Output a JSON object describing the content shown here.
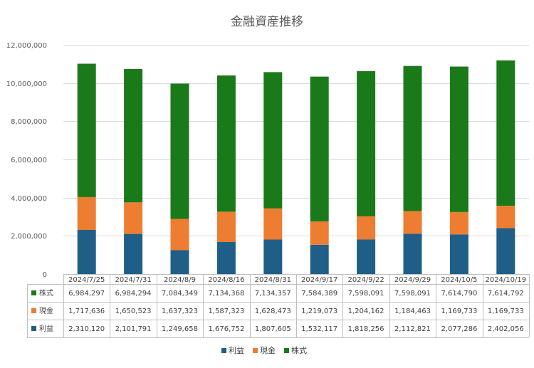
{
  "chart_data": {
    "type": "bar",
    "stacked": true,
    "title": "金融資産推移",
    "categories": [
      "2024/7/25",
      "2024/7/31",
      "2024/8/9",
      "2024/8/16",
      "2024/8/31",
      "2024/9/17",
      "2024/9/22",
      "2024/9/29",
      "2024/10/5",
      "2024/10/19"
    ],
    "series": [
      {
        "name": "利益",
        "color": "#1f5f87",
        "values": [
          2310120,
          2101791,
          1249658,
          1676752,
          1807605,
          1532117,
          1818256,
          2112821,
          2077286,
          2402056
        ]
      },
      {
        "name": "現金",
        "color": "#ed7d31",
        "values": [
          1717636,
          1650523,
          1637323,
          1587323,
          1628473,
          1219073,
          1204162,
          1184463,
          1169733,
          1169733
        ]
      },
      {
        "name": "株式",
        "color": "#1a7a1a",
        "values": [
          6984297,
          6984294,
          7084349,
          7134368,
          7134357,
          7584389,
          7598091,
          7598091,
          7614790,
          7614792
        ]
      }
    ],
    "ylim": [
      0,
      12000000
    ],
    "yticks": [
      0,
      2000000,
      4000000,
      6000000,
      8000000,
      10000000,
      12000000
    ],
    "ytick_labels": [
      "0",
      "2,000,000",
      "4,000,000",
      "6,000,000",
      "8,000,000",
      "10,000,000",
      "12,000,000"
    ],
    "table_rows": [
      {
        "name": "株式",
        "color": "#1a7a1a",
        "values": [
          "6,984,297",
          "6,984,294",
          "7,084,349",
          "7,134,368",
          "7,134,357",
          "7,584,389",
          "7,598,091",
          "7,598,091",
          "7,614,790",
          "7,614,792"
        ]
      },
      {
        "name": "現金",
        "color": "#ed7d31",
        "values": [
          "1,717,636",
          "1,650,523",
          "1,637,323",
          "1,587,323",
          "1,628,473",
          "1,219,073",
          "1,204,162",
          "1,184,463",
          "1,169,733",
          "1,169,733"
        ]
      },
      {
        "name": "利益",
        "color": "#1f5f87",
        "values": [
          "2,310,120",
          "2,101,791",
          "1,249,658",
          "1,676,752",
          "1,807,605",
          "1,532,117",
          "1,818,256",
          "2,112,821",
          "2,077,286",
          "2,402,056"
        ]
      }
    ],
    "legend": {
      "position": "bottom",
      "entries": [
        {
          "name": "利益",
          "color": "#1f5f87"
        },
        {
          "name": "現金",
          "color": "#ed7d31"
        },
        {
          "name": "株式",
          "color": "#1a7a1a"
        }
      ]
    },
    "grid": true
  }
}
